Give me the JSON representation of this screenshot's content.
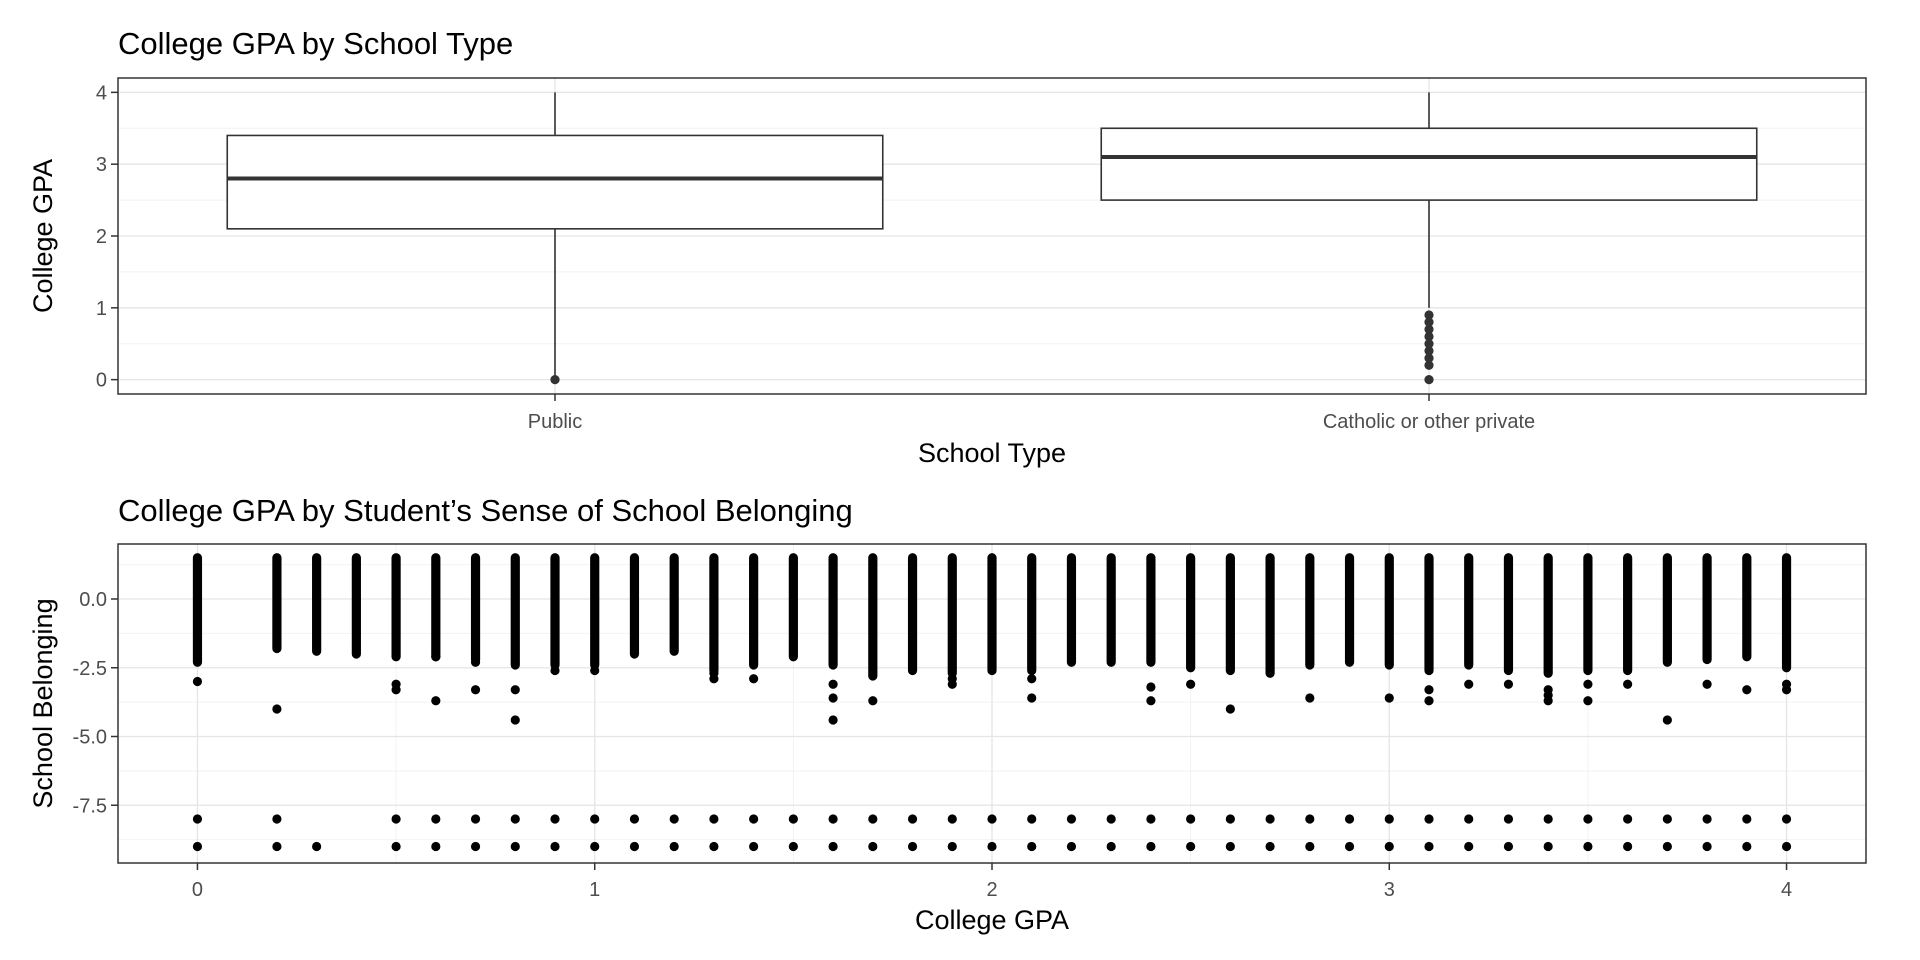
{
  "chart_data": [
    {
      "type": "box",
      "title": "College GPA by School Type",
      "xlabel": "School Type",
      "ylabel": "College GPA",
      "categories": [
        "Public",
        "Catholic or other private"
      ],
      "ylim": [
        -0.2,
        4.2
      ],
      "yticks": [
        0,
        1,
        2,
        3,
        4
      ],
      "boxes": [
        {
          "category": "Public",
          "min": 0.0,
          "q1": 2.1,
          "median": 2.8,
          "q3": 3.4,
          "max": 4.0,
          "outliers": [
            0.0
          ]
        },
        {
          "category": "Catholic or other private",
          "min": 1.0,
          "q1": 2.5,
          "median": 3.1,
          "q3": 3.5,
          "max": 4.0,
          "outliers": [
            0.0,
            0.2,
            0.3,
            0.4,
            0.5,
            0.6,
            0.7,
            0.8,
            0.9
          ]
        }
      ],
      "grid": true
    },
    {
      "type": "scatter",
      "title": "College GPA by Student’s Sense of School Belonging",
      "xlabel": "College GPA",
      "ylabel": "School Belonging",
      "xlim": [
        -0.2,
        4.2
      ],
      "ylim": [
        -9.6,
        2.0
      ],
      "xticks": [
        0,
        1,
        2,
        3,
        4
      ],
      "yticks": [
        -7.5,
        -5.0,
        -2.5,
        0.0
      ],
      "ytick_labels": [
        "-7.5",
        "-5.0",
        "-2.5",
        "0.0"
      ],
      "x_levels": [
        0.0,
        0.2,
        0.3,
        0.4,
        0.5,
        0.6,
        0.7,
        0.8,
        0.9,
        1.0,
        1.1,
        1.2,
        1.3,
        1.4,
        1.5,
        1.6,
        1.7,
        1.8,
        1.9,
        2.0,
        2.1,
        2.2,
        2.3,
        2.4,
        2.5,
        2.6,
        2.7,
        2.8,
        2.9,
        3.0,
        3.1,
        3.2,
        3.3,
        3.4,
        3.5,
        3.6,
        3.7,
        3.8,
        3.9,
        4.0
      ],
      "dense_range_top": 1.5,
      "dense_range_bottom": [
        -2.3,
        -1.8,
        -1.9,
        -2.0,
        -2.1,
        -2.1,
        -2.2,
        -2.4,
        -2.4,
        -2.4,
        -2.0,
        -1.9,
        -2.6,
        -2.4,
        -2.1,
        -2.4,
        -2.8,
        -2.6,
        -2.7,
        -2.6,
        -2.6,
        -2.3,
        -2.3,
        -2.3,
        -2.5,
        -2.6,
        -2.7,
        -2.4,
        -2.3,
        -2.4,
        -2.6,
        -2.4,
        -2.6,
        -2.7,
        -2.6,
        -2.6,
        -2.3,
        -2.2,
        -2.1,
        -2.5
      ],
      "sparse_points": [
        [
          0.0,
          -3.0
        ],
        [
          0.2,
          -4.0
        ],
        [
          0.5,
          -3.1
        ],
        [
          0.5,
          -3.3
        ],
        [
          0.6,
          -2.1
        ],
        [
          0.6,
          -3.7
        ],
        [
          0.7,
          -2.3
        ],
        [
          0.7,
          -3.3
        ],
        [
          0.8,
          -3.3
        ],
        [
          0.8,
          -4.4
        ],
        [
          0.9,
          -2.6
        ],
        [
          1.0,
          -2.6
        ],
        [
          1.3,
          -2.7
        ],
        [
          1.3,
          -2.9
        ],
        [
          1.4,
          -2.9
        ],
        [
          1.6,
          -3.1
        ],
        [
          1.6,
          -3.6
        ],
        [
          1.6,
          -4.4
        ],
        [
          1.7,
          -3.7
        ],
        [
          1.9,
          -2.9
        ],
        [
          1.9,
          -3.1
        ],
        [
          2.1,
          -2.9
        ],
        [
          2.1,
          -3.6
        ],
        [
          2.4,
          -3.2
        ],
        [
          2.4,
          -3.7
        ],
        [
          2.5,
          -3.1
        ],
        [
          2.6,
          -4.0
        ],
        [
          2.8,
          -3.6
        ],
        [
          3.0,
          -3.6
        ],
        [
          3.1,
          -3.3
        ],
        [
          3.1,
          -3.7
        ],
        [
          3.2,
          -3.1
        ],
        [
          3.3,
          -3.1
        ],
        [
          3.4,
          -3.3
        ],
        [
          3.4,
          -3.5
        ],
        [
          3.4,
          -3.7
        ],
        [
          3.5,
          -3.1
        ],
        [
          3.5,
          -3.7
        ],
        [
          3.6,
          -3.1
        ],
        [
          3.7,
          -4.4
        ],
        [
          3.8,
          -3.1
        ],
        [
          3.9,
          -3.3
        ],
        [
          4.0,
          -3.1
        ],
        [
          4.0,
          -3.3
        ]
      ],
      "band_values": [
        -8.0,
        -9.0
      ],
      "band_absent": [
        [
          0.3,
          -8.0
        ],
        [
          0.4,
          -8.0
        ],
        [
          0.4,
          -9.0
        ]
      ],
      "grid": true
    }
  ]
}
